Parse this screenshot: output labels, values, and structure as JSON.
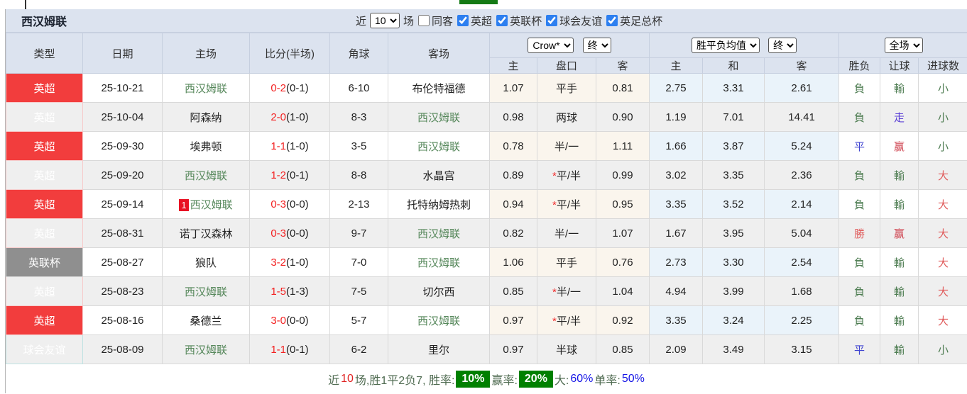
{
  "toolbar": {
    "team": "西汉姆联",
    "near_label": "近",
    "near_value": "10",
    "games_label": "场",
    "same_away_label": "同客",
    "same_away_checked": false,
    "filters": [
      {
        "label": "英超",
        "checked": true
      },
      {
        "label": "英联杯",
        "checked": true
      },
      {
        "label": "球会友谊",
        "checked": true
      },
      {
        "label": "英足总杯",
        "checked": true
      }
    ]
  },
  "table": {
    "main_headers": [
      "类型",
      "日期",
      "主场",
      "比分(半场)",
      "角球",
      "客场"
    ],
    "selects": {
      "bookmaker": "Crow*",
      "bookmaker_status": "终",
      "average": "胜平负均值",
      "average_status": "终",
      "scope": "全场"
    },
    "sub_headers": [
      "主",
      "盘口",
      "客",
      "主",
      "和",
      "客",
      "胜负",
      "让球",
      "进球数"
    ],
    "rows": [
      {
        "league": "英超",
        "league_color": "red",
        "date": "25-10-21",
        "home": "西汉姆联",
        "home_team": true,
        "home_badge": "",
        "score": "0-2",
        "half": "(0-1)",
        "corners": "6-10",
        "away": "布伦特福德",
        "away_team": false,
        "ah_home": "1.07",
        "ah_line": "平手",
        "ah_star": false,
        "ah_away": "0.81",
        "avg_home": "2.75",
        "avg_draw": "3.31",
        "avg_away": "2.61",
        "result": "負",
        "result_color": "green",
        "letball": "輸",
        "letball_color": "green",
        "goals": "小",
        "goals_color": "green"
      },
      {
        "league": "英超",
        "league_color": "red",
        "date": "25-10-04",
        "home": "阿森纳",
        "home_team": false,
        "home_badge": "",
        "score": "2-0",
        "half": "(1-0)",
        "corners": "8-3",
        "away": "西汉姆联",
        "away_team": true,
        "ah_home": "0.98",
        "ah_line": "两球",
        "ah_star": false,
        "ah_away": "0.90",
        "avg_home": "1.19",
        "avg_draw": "7.01",
        "avg_away": "14.41",
        "result": "負",
        "result_color": "green",
        "letball": "走",
        "letball_color": "purple",
        "goals": "小",
        "goals_color": "green"
      },
      {
        "league": "英超",
        "league_color": "red",
        "date": "25-09-30",
        "home": "埃弗顿",
        "home_team": false,
        "home_badge": "",
        "score": "1-1",
        "half": "(1-0)",
        "corners": "3-5",
        "away": "西汉姆联",
        "away_team": true,
        "ah_home": "0.78",
        "ah_line": "半/一",
        "ah_star": false,
        "ah_away": "1.11",
        "avg_home": "1.66",
        "avg_draw": "3.87",
        "avg_away": "5.24",
        "result": "平",
        "result_color": "blue",
        "letball": "赢",
        "letball_color": "crimson",
        "goals": "小",
        "goals_color": "green"
      },
      {
        "league": "英超",
        "league_color": "red",
        "date": "25-09-20",
        "home": "西汉姆联",
        "home_team": true,
        "home_badge": "",
        "score": "1-2",
        "half": "(0-1)",
        "corners": "8-8",
        "away": "水晶宫",
        "away_team": false,
        "ah_home": "0.89",
        "ah_line": "平/半",
        "ah_star": true,
        "ah_away": "0.99",
        "avg_home": "3.02",
        "avg_draw": "3.35",
        "avg_away": "2.36",
        "result": "負",
        "result_color": "green",
        "letball": "輸",
        "letball_color": "green",
        "goals": "大",
        "goals_color": "red"
      },
      {
        "league": "英超",
        "league_color": "red",
        "date": "25-09-14",
        "home": "西汉姆联",
        "home_team": true,
        "home_badge": "1",
        "score": "0-3",
        "half": "(0-0)",
        "corners": "2-13",
        "away": "托特纳姆热刺",
        "away_team": false,
        "ah_home": "0.94",
        "ah_line": "平/半",
        "ah_star": true,
        "ah_away": "0.95",
        "avg_home": "3.35",
        "avg_draw": "3.52",
        "avg_away": "2.14",
        "result": "負",
        "result_color": "green",
        "letball": "輸",
        "letball_color": "green",
        "goals": "大",
        "goals_color": "red"
      },
      {
        "league": "英超",
        "league_color": "red",
        "date": "25-08-31",
        "home": "诺丁汉森林",
        "home_team": false,
        "home_badge": "",
        "score": "0-3",
        "half": "(0-0)",
        "corners": "9-7",
        "away": "西汉姆联",
        "away_team": true,
        "ah_home": "0.82",
        "ah_line": "半/一",
        "ah_star": false,
        "ah_away": "1.07",
        "avg_home": "1.67",
        "avg_draw": "3.95",
        "avg_away": "5.04",
        "result": "勝",
        "result_color": "red",
        "letball": "赢",
        "letball_color": "crimson",
        "goals": "大",
        "goals_color": "red"
      },
      {
        "league": "英联杯",
        "league_color": "gray",
        "date": "25-08-27",
        "home": "狼队",
        "home_team": false,
        "home_badge": "",
        "score": "3-2",
        "half": "(1-0)",
        "corners": "7-0",
        "away": "西汉姆联",
        "away_team": true,
        "ah_home": "1.06",
        "ah_line": "平手",
        "ah_star": false,
        "ah_away": "0.76",
        "avg_home": "2.73",
        "avg_draw": "3.30",
        "avg_away": "2.54",
        "result": "負",
        "result_color": "green",
        "letball": "輸",
        "letball_color": "green",
        "goals": "大",
        "goals_color": "red"
      },
      {
        "league": "英超",
        "league_color": "red",
        "date": "25-08-23",
        "home": "西汉姆联",
        "home_team": true,
        "home_badge": "",
        "score": "1-5",
        "half": "(1-3)",
        "corners": "7-5",
        "away": "切尔西",
        "away_team": false,
        "ah_home": "0.85",
        "ah_line": "半/一",
        "ah_star": true,
        "ah_away": "1.04",
        "avg_home": "4.94",
        "avg_draw": "3.99",
        "avg_away": "1.68",
        "result": "負",
        "result_color": "green",
        "letball": "輸",
        "letball_color": "green",
        "goals": "大",
        "goals_color": "red"
      },
      {
        "league": "英超",
        "league_color": "red",
        "date": "25-08-16",
        "home": "桑德兰",
        "home_team": false,
        "home_badge": "",
        "score": "3-0",
        "half": "(0-0)",
        "corners": "5-7",
        "away": "西汉姆联",
        "away_team": true,
        "ah_home": "0.97",
        "ah_line": "平/半",
        "ah_star": true,
        "ah_away": "0.92",
        "avg_home": "3.35",
        "avg_draw": "3.24",
        "avg_away": "2.25",
        "result": "負",
        "result_color": "green",
        "letball": "輸",
        "letball_color": "green",
        "goals": "大",
        "goals_color": "red"
      },
      {
        "league": "球会友谊",
        "league_color": "teal",
        "date": "25-08-09",
        "home": "西汉姆联",
        "home_team": true,
        "home_badge": "",
        "score": "1-1",
        "half": "(0-1)",
        "corners": "6-2",
        "away": "里尔",
        "away_team": false,
        "ah_home": "0.97",
        "ah_line": "半球",
        "ah_star": false,
        "ah_away": "0.85",
        "avg_home": "2.09",
        "avg_draw": "3.49",
        "avg_away": "3.15",
        "result": "平",
        "result_color": "blue",
        "letball": "輸",
        "letball_color": "green",
        "goals": "小",
        "goals_color": "green"
      }
    ]
  },
  "summary": {
    "segments": [
      {
        "text": "近",
        "style": "label"
      },
      {
        "text": "10",
        "style": "red"
      },
      {
        "text": "场,胜1平2负7, 胜率:",
        "style": "label"
      },
      {
        "text": "10%",
        "style": "badge"
      },
      {
        "text": "赢率:",
        "style": "label"
      },
      {
        "text": "20%",
        "style": "badge"
      },
      {
        "text": "大:",
        "style": "label"
      },
      {
        "text": "60%",
        "style": "blue"
      },
      {
        "text": "单率:",
        "style": "label"
      },
      {
        "text": "50%",
        "style": "blue"
      }
    ]
  },
  "colors": {
    "league_red": "#f23d3d",
    "league_gray": "#8f8f8f",
    "league_teal": "#16a3a3",
    "team_green": "#55875a",
    "score_red": "#f32222",
    "result_green": "#4e7d52",
    "result_blue": "#3f44d0",
    "result_red": "#e05c5c",
    "pct_badge_green": "#008000",
    "toolbar_bg": "#dce3ef"
  }
}
